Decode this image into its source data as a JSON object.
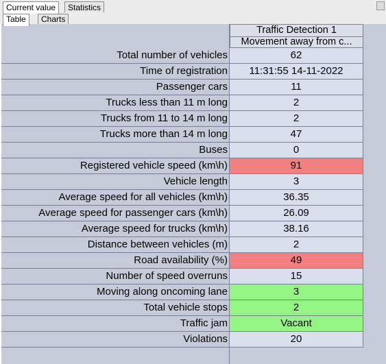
{
  "tabs": {
    "top": [
      "Current value",
      "Statistics"
    ],
    "sub": [
      "Table",
      "Charts"
    ]
  },
  "table": {
    "column_header": "Traffic Detection 1",
    "column_subheader": "Movement away from c...",
    "rows": [
      {
        "label": "Total number of vehicles",
        "value": "62",
        "status": "normal"
      },
      {
        "label": "Time of registration",
        "value": "11:31:55 14-11-2022",
        "status": "normal"
      },
      {
        "label": "Passenger cars",
        "value": "11",
        "status": "normal"
      },
      {
        "label": "Trucks less than 11 m long",
        "value": "2",
        "status": "normal"
      },
      {
        "label": "Trucks from 11 to 14 m long",
        "value": "2",
        "status": "normal"
      },
      {
        "label": "Trucks more than 14 m long",
        "value": "47",
        "status": "normal"
      },
      {
        "label": "Buses",
        "value": "0",
        "status": "normal"
      },
      {
        "label": "Registered vehicle speed (km\\h)",
        "value": "91",
        "status": "alert"
      },
      {
        "label": "Vehicle length",
        "value": "3",
        "status": "normal"
      },
      {
        "label": "Average speed for all vehicles (km\\h)",
        "value": "36.35",
        "status": "normal"
      },
      {
        "label": "Average speed for passenger cars (km\\h)",
        "value": "26.09",
        "status": "normal"
      },
      {
        "label": "Average speed for trucks (km\\h)",
        "value": "38.16",
        "status": "normal"
      },
      {
        "label": "Distance between vehicles (m)",
        "value": "2",
        "status": "normal"
      },
      {
        "label": "Road availability (%)",
        "value": "49",
        "status": "alert"
      },
      {
        "label": "Number of speed overruns",
        "value": "15",
        "status": "normal"
      },
      {
        "label": "Moving along oncoming lane",
        "value": "3",
        "status": "ok"
      },
      {
        "label": "Total vehicle stops",
        "value": "2",
        "status": "ok"
      },
      {
        "label": "Traffic jam",
        "value": "Vacant",
        "status": "ok"
      },
      {
        "label": "Violations",
        "value": "20",
        "status": "normal"
      }
    ]
  },
  "colors": {
    "alert": "#f28080",
    "ok": "#94f484",
    "normal": "#d8deeb",
    "label_bg": "#c5cbd8"
  }
}
